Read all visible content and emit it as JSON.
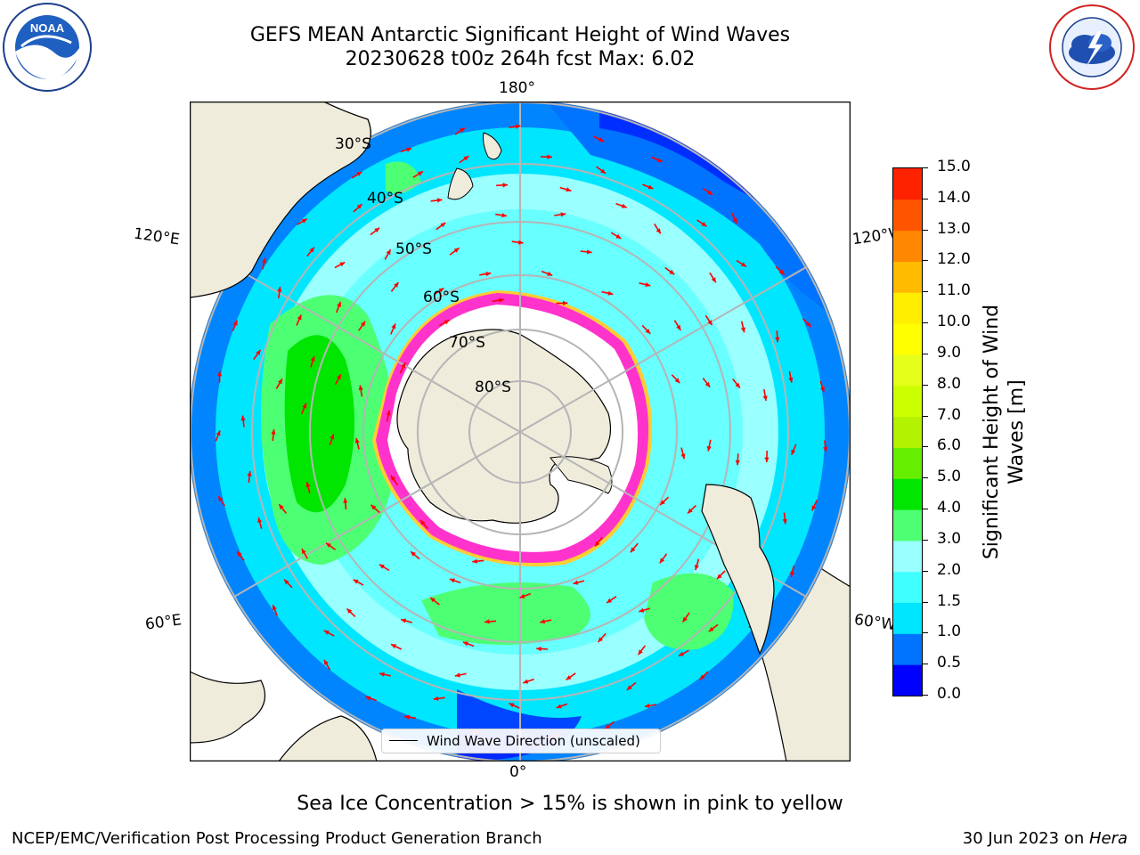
{
  "title": {
    "line1": "GEFS MEAN Antarctic Significant Height of Wind Waves",
    "line2": "20230628 t00z 264h fcst   Max: 6.02"
  },
  "logos": {
    "left": {
      "name": "noaa-logo",
      "text": "NOAA",
      "ring_text": "NATIONAL OCEANIC AND ATMOSPHERIC ADMINISTRATION · U.S. DEPARTMENT OF COMMERCE"
    },
    "right": {
      "name": "nws-logo",
      "ring_text": "NATIONAL WEATHER SERVICE"
    }
  },
  "map": {
    "projection": "south-polar-stereographic",
    "longitude_labels": {
      "top": "180°",
      "bottom": "0°",
      "left_upper": "120°E",
      "left_lower": "60°E",
      "right_upper": "120°W",
      "right_lower": "60°W"
    },
    "latitude_labels": [
      "30°S",
      "40°S",
      "50°S",
      "60°S",
      "70°S",
      "80°S"
    ],
    "colors": {
      "land": "#efecdc",
      "ice_edge_pink": "#ff33cc",
      "ice_edge_yellow": "#ffcc33",
      "arrow": "#ff0000",
      "grid": "#b5b5b5"
    },
    "legend_label": "Wind Wave Direction (unscaled)"
  },
  "colorbar": {
    "ticks": [
      "0.0",
      "0.5",
      "1.0",
      "1.5",
      "2.0",
      "3.0",
      "4.0",
      "5.0",
      "6.0",
      "7.0",
      "8.0",
      "9.0",
      "10.0",
      "11.0",
      "12.0",
      "13.0",
      "14.0",
      "15.0"
    ],
    "colors": [
      "#0000ff",
      "#0073ff",
      "#00e6ff",
      "#40ffff",
      "#99ffff",
      "#4dff73",
      "#00e600",
      "#66ee00",
      "#b3f200",
      "#ccff00",
      "#e6ff1a",
      "#ffff00",
      "#ffee00",
      "#ffbb00",
      "#ff8800",
      "#ff5500",
      "#ff2200"
    ],
    "label": "Significant Height of Wind Waves [m]"
  },
  "caption": "Sea Ice Concentration > 15% is shown in pink to yellow",
  "footer": {
    "left": "NCEP/EMC/Verification Post Processing Product Generation Branch",
    "right_date": "30 Jun 2023 on ",
    "right_host": "Hera"
  }
}
